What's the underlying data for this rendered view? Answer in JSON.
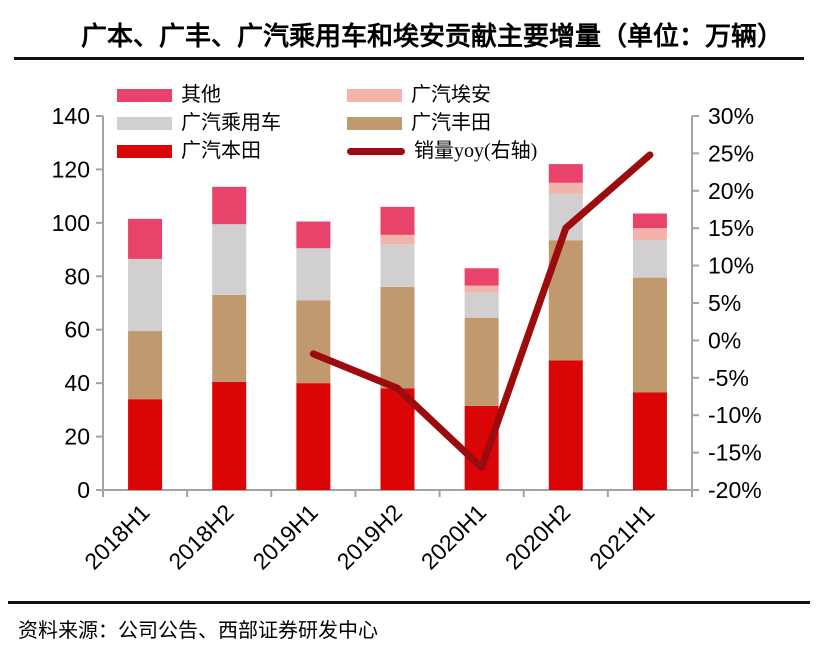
{
  "title": "广本、广丰、广汽乘用车和埃安贡献主要增量（单位：万辆）",
  "source": "资料来源：公司公告、西部证券研发中心",
  "colors": {
    "honda_red": "#d90506",
    "toyota_tan": "#c09a6e",
    "gac_passenger_gray": "#d1cfcf",
    "aion_pink": "#f2b4aa",
    "other_crimson": "#e8436b",
    "yoy_line_dark_red": "#9c0b0d",
    "axis_gray": "#a3a3a3",
    "text_black": "#000000"
  },
  "legend": {
    "items": [
      {
        "label": "其他",
        "color": "#e8436b",
        "type": "bar"
      },
      {
        "label": "广汽埃安",
        "color": "#f2b4aa",
        "type": "bar"
      },
      {
        "label": "广汽乘用车",
        "color": "#d1cfcf",
        "type": "bar"
      },
      {
        "label": "广汽丰田",
        "color": "#c09a6e",
        "type": "bar"
      },
      {
        "label": "广汽本田",
        "color": "#d90506",
        "type": "bar"
      },
      {
        "label": "销量yoy(右轴)",
        "color": "#9c0b0d",
        "type": "line"
      }
    ]
  },
  "chart_data": {
    "type": "bar",
    "stacked": true,
    "unit": "万辆",
    "categories": [
      "2018H1",
      "2018H2",
      "2019H1",
      "2019H2",
      "2020H1",
      "2020H2",
      "2021H1"
    ],
    "series": [
      {
        "name": "广汽本田",
        "type": "bar",
        "color": "#d90506",
        "values": [
          34,
          40.5,
          40,
          38,
          31.5,
          48.5,
          36.5
        ]
      },
      {
        "name": "广汽丰田",
        "type": "bar",
        "color": "#c09a6e",
        "values": [
          25.5,
          32.5,
          31,
          38,
          33,
          45,
          43
        ]
      },
      {
        "name": "广汽乘用车",
        "type": "bar",
        "color": "#d1cfcf",
        "values": [
          27,
          26.5,
          19.5,
          16,
          9.5,
          17.5,
          14
        ]
      },
      {
        "name": "广汽埃安",
        "type": "bar",
        "color": "#f2b4aa",
        "values": [
          0,
          0,
          0,
          3.5,
          2.5,
          4,
          4.5
        ]
      },
      {
        "name": "其他",
        "type": "bar",
        "color": "#e8436b",
        "values": [
          15,
          14,
          10,
          10.5,
          6.5,
          7,
          5.5
        ]
      },
      {
        "name": "销量yoy(右轴)",
        "type": "line",
        "axis": "right",
        "color": "#9c0b0d",
        "values": [
          null,
          null,
          -1.8,
          -6.4,
          -17,
          15,
          24.8
        ]
      }
    ],
    "y_left": {
      "min": 0,
      "max": 140,
      "step": 20,
      "suffix": ""
    },
    "y_right": {
      "min": -20,
      "max": 30,
      "step": 5,
      "suffix": "%"
    },
    "grid": false,
    "legend_position": "top"
  }
}
